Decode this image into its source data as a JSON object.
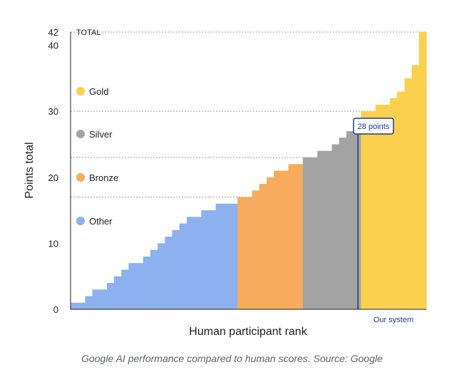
{
  "chart_data": {
    "type": "bar",
    "title": "",
    "xlabel": "Human participant rank",
    "ylabel": "Points total",
    "ylim": [
      0,
      42
    ],
    "yticks": [
      0,
      10,
      20,
      30,
      40,
      42
    ],
    "grid": "dotted lines at 17, 23, 30, 42",
    "total_label": "TOTAL",
    "legend": [
      {
        "name": "Gold",
        "color": "#fcd04f"
      },
      {
        "name": "Silver",
        "color": "#a3a3a3"
      },
      {
        "name": "Bronze",
        "color": "#f6ac5c"
      },
      {
        "name": "Other",
        "color": "#8db0ef"
      }
    ],
    "series": [
      {
        "name": "Other",
        "color": "#8db0ef",
        "start_rank": 0,
        "values": [
          1,
          1,
          2,
          3,
          3,
          4,
          5,
          6,
          7,
          7,
          8,
          9,
          10,
          11,
          12,
          13,
          14,
          14,
          15,
          15,
          16,
          16,
          16
        ]
      },
      {
        "name": "Bronze",
        "color": "#f6ac5c",
        "start_rank": 23,
        "values": [
          17,
          17,
          18,
          19,
          20,
          21,
          21,
          22,
          22
        ]
      },
      {
        "name": "Silver",
        "color": "#a3a3a3",
        "start_rank": 32,
        "values": [
          23,
          23,
          24,
          24,
          25,
          26,
          27,
          28
        ]
      },
      {
        "name": "Gold",
        "color": "#fcd04f",
        "start_rank": 40,
        "values": [
          30,
          30,
          31,
          31,
          32,
          33,
          35,
          37,
          42
        ]
      }
    ],
    "x_total_ranks": 49,
    "our_system": {
      "label": "Our system",
      "points": 28,
      "callout": "28 points",
      "rank": 39.6,
      "color": "#1a3a8f"
    }
  },
  "caption": "Google AI performance compared to human scores. Source: Google"
}
